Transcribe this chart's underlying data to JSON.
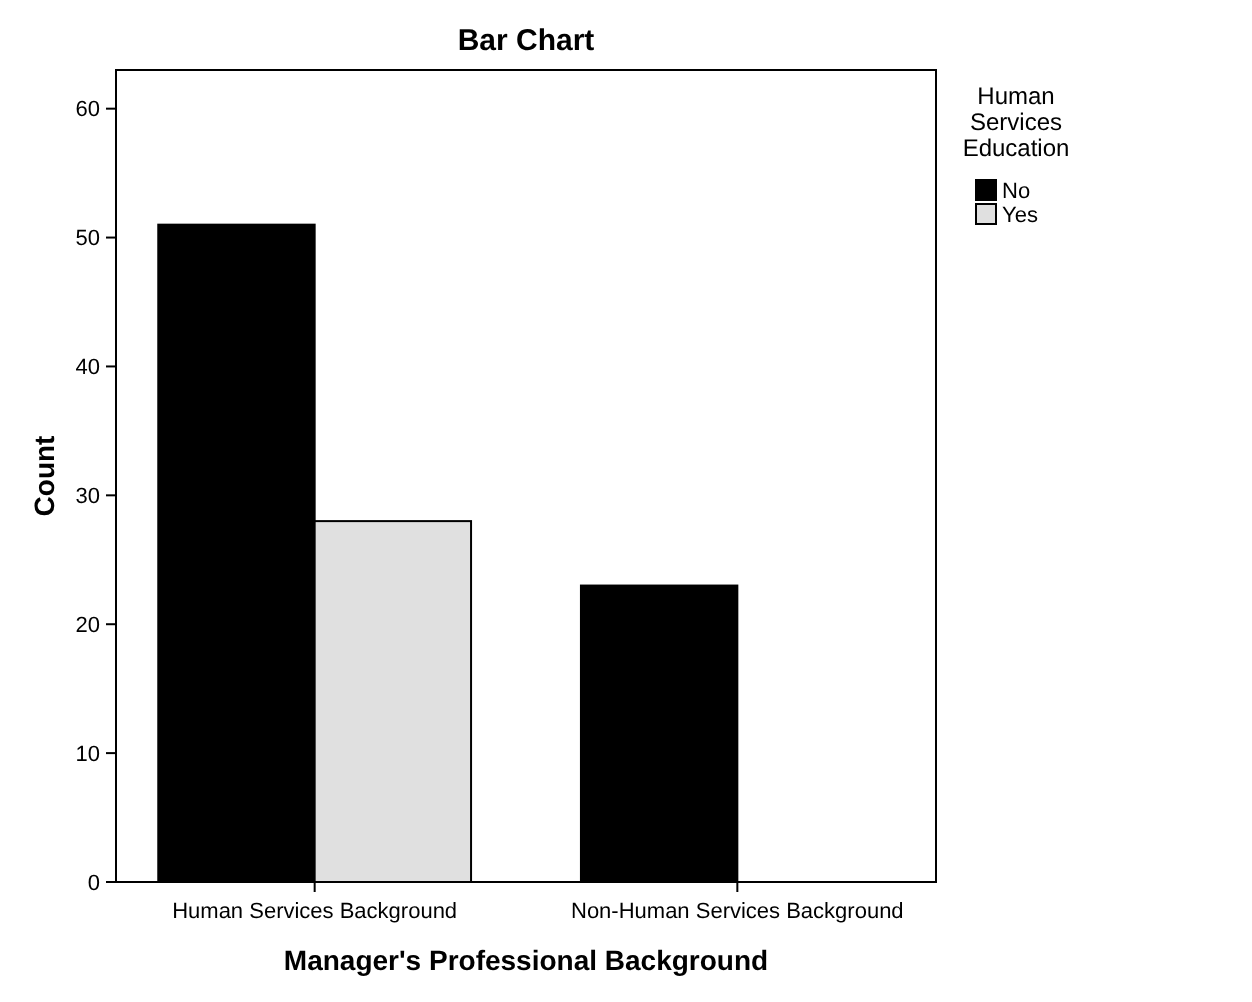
{
  "chart_data": {
    "type": "bar",
    "title": "Bar Chart",
    "xlabel": "Manager's Professional Background",
    "ylabel": "Count",
    "legend_title": "Human Services Education",
    "categories": [
      "Human Services Background",
      "Non-Human Services Background"
    ],
    "series": [
      {
        "name": "No",
        "color": "#000000",
        "values": [
          51,
          23
        ]
      },
      {
        "name": "Yes",
        "color": "#e0e0e0",
        "values": [
          28,
          0
        ]
      }
    ],
    "ylim": [
      0,
      63
    ],
    "yticks": [
      0,
      10,
      20,
      30,
      40,
      50,
      60
    ],
    "grid": false,
    "legend": "top right"
  }
}
